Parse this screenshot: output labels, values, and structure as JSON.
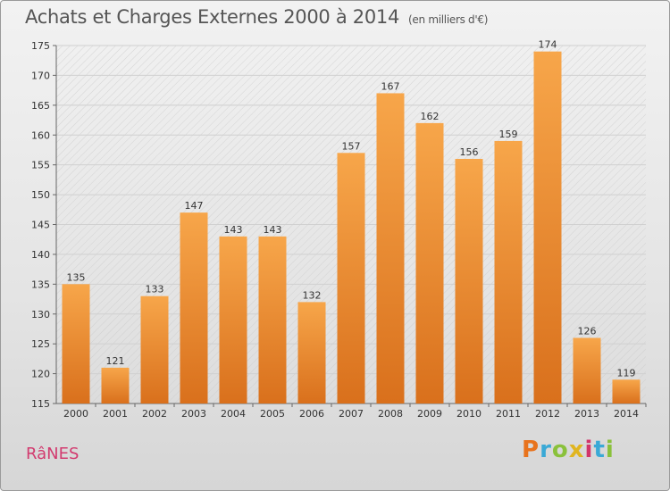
{
  "header": {
    "title": "Achats et Charges Externes 2000 à 2014",
    "unit": "(en milliers d'€)"
  },
  "footer": {
    "commune": "RâNES",
    "brand": "Proxiti"
  },
  "colors": {
    "bar_light": "#f7a64a",
    "bar_dark": "#d9701c",
    "commune": "#d23b6f"
  },
  "chart_data": {
    "type": "bar",
    "title": "Achats et Charges Externes 2000 à 2014",
    "subtitle": "(en milliers d'€)",
    "categories": [
      "2000",
      "2001",
      "2002",
      "2003",
      "2004",
      "2005",
      "2006",
      "2007",
      "2008",
      "2009",
      "2010",
      "2011",
      "2012",
      "2013",
      "2014"
    ],
    "values": [
      135,
      121,
      133,
      147,
      143,
      143,
      132,
      157,
      167,
      162,
      156,
      159,
      174,
      126,
      119
    ],
    "ylim": [
      115,
      175
    ],
    "yticks": [
      115,
      120,
      125,
      130,
      135,
      140,
      145,
      150,
      155,
      160,
      165,
      170,
      175
    ],
    "grid": true,
    "xlabel": "",
    "ylabel": ""
  }
}
